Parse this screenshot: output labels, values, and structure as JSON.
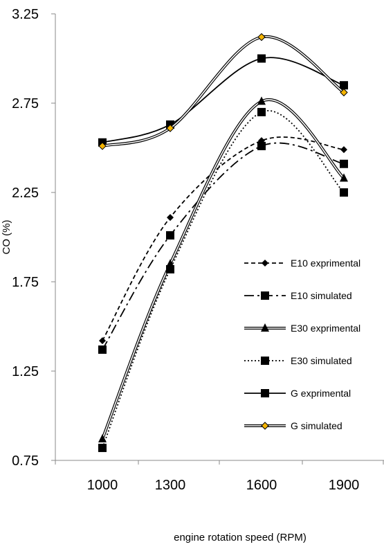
{
  "chart_data": {
    "type": "line",
    "title": "",
    "xlabel": "engine rotation speed (RPM)",
    "ylabel": "CO (%)",
    "categories": [
      "1000",
      "1300",
      "1600",
      "1900"
    ],
    "ylim": [
      0.75,
      3.25
    ],
    "yticks": [
      "0.75",
      "1.25",
      "1.75",
      "2.25",
      "2.75",
      "3.25"
    ],
    "grid": false,
    "legend_position": "right",
    "series": [
      {
        "name": "E10 exprimental",
        "values": [
          1.42,
          2.11,
          2.54,
          2.49
        ],
        "color": "#000000",
        "dash": "dashed",
        "line": "single",
        "marker": "diamond"
      },
      {
        "name": "E10 simulated",
        "values": [
          1.37,
          2.01,
          2.51,
          2.41
        ],
        "color": "#000000",
        "dash": "dashdot",
        "line": "single",
        "marker": "square"
      },
      {
        "name": "E30 exprimental",
        "values": [
          0.87,
          1.85,
          2.76,
          2.33
        ],
        "color": "#000000",
        "dash": "solid",
        "line": "double",
        "marker": "triangle"
      },
      {
        "name": "E30 simulated",
        "values": [
          0.82,
          1.82,
          2.7,
          2.25
        ],
        "color": "#000000",
        "dash": "dotted",
        "line": "single",
        "marker": "square"
      },
      {
        "name": "G exprimental",
        "values": [
          2.53,
          2.63,
          3.0,
          2.85
        ],
        "color": "#000000",
        "dash": "solid",
        "line": "single",
        "marker": "square"
      },
      {
        "name": "G simulated",
        "values": [
          2.51,
          2.61,
          3.12,
          2.81
        ],
        "color": "#000000",
        "dash": "solid",
        "line": "double",
        "marker": "diamond-gold",
        "marker_color": "#F4B400"
      }
    ]
  }
}
